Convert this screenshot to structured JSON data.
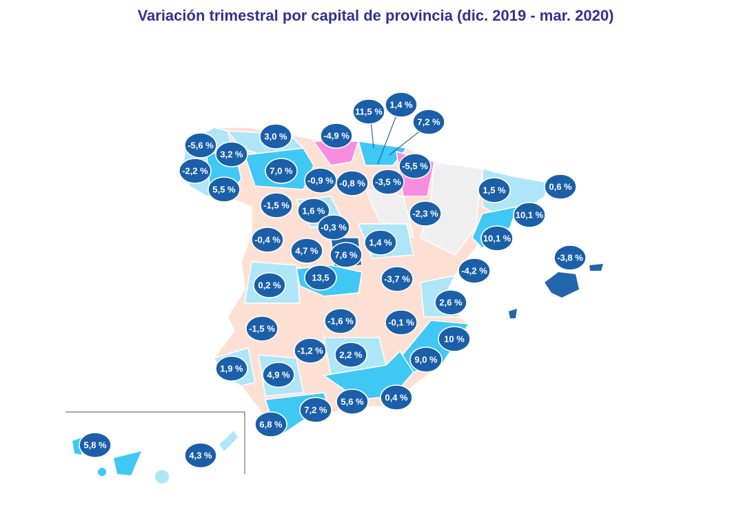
{
  "title": "Variación trimestral por capital de provincia (dic. 2019 - mar. 2020)",
  "labels": [
    "-5,6 %",
    "3,2 %",
    "3,0 %",
    "-4,9 %",
    "11,5 %",
    "1,4 %",
    "7,2 %",
    "-2,2 %",
    "7,0 %",
    "-0,9 %",
    "-0,8 %",
    "-3,5 %",
    "-5,5 %",
    "5,5 %",
    "1,5 %",
    "0,6 %",
    "-1,5 %",
    "1,6 %",
    "-2,3 %",
    "10,1 %",
    "-0,3 %",
    "-0,4 %",
    "1,4 %",
    "10,1 %",
    "4,7 %",
    "7,6 %",
    "-3,8 %",
    "-4,2 %",
    "13,5",
    "-3,7 %",
    "0,2 %",
    "2,6 %",
    "-1,5 %",
    "-1,6 %",
    "-0,1 %",
    "10 %",
    "-1,2 %",
    "2,2 %",
    "9,0 %",
    "1,9 %",
    "4,9 %",
    "5,6 %",
    "0,4 %",
    "7,2 %",
    "6,8 %",
    "5,8 %",
    "4,3 %"
  ]
}
